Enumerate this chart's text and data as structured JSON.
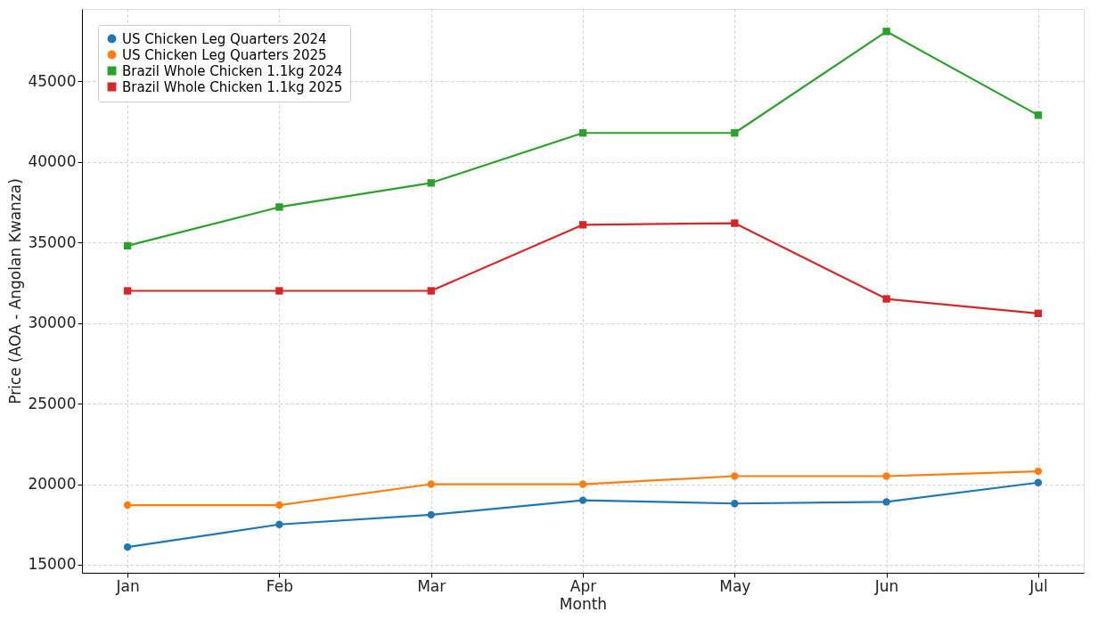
{
  "chart_data": {
    "type": "line",
    "xlabel": "Month",
    "ylabel": "Price (AOA - Angolan Kwanza)",
    "categories": [
      "Jan",
      "Feb",
      "Mar",
      "Apr",
      "May",
      "Jun",
      "Jul"
    ],
    "series": [
      {
        "name": "US Chicken Leg Quarters 2024",
        "color": "#1f77b4",
        "marker": "circle",
        "values": [
          16100,
          17500,
          18100,
          19000,
          18800,
          18900,
          20100
        ]
      },
      {
        "name": "US Chicken Leg Quarters 2025",
        "color": "#ff7f0e",
        "marker": "circle",
        "values": [
          18700,
          18700,
          20000,
          20000,
          20500,
          20500,
          20800
        ]
      },
      {
        "name": "Brazil Whole Chicken 1.1kg 2024",
        "color": "#2ca02c",
        "marker": "square",
        "values": [
          34800,
          37200,
          38700,
          41800,
          41800,
          48100,
          42900
        ]
      },
      {
        "name": "Brazil Whole Chicken 1.1kg 2025",
        "color": "#d62728",
        "marker": "square",
        "values": [
          32000,
          32000,
          32000,
          36100,
          36200,
          31500,
          30600
        ]
      }
    ],
    "ylim": [
      14500,
      49500
    ],
    "yticks": [
      15000,
      20000,
      25000,
      30000,
      35000,
      40000,
      45000
    ],
    "grid": true,
    "legend": "top left",
    "line_style": "solid"
  }
}
